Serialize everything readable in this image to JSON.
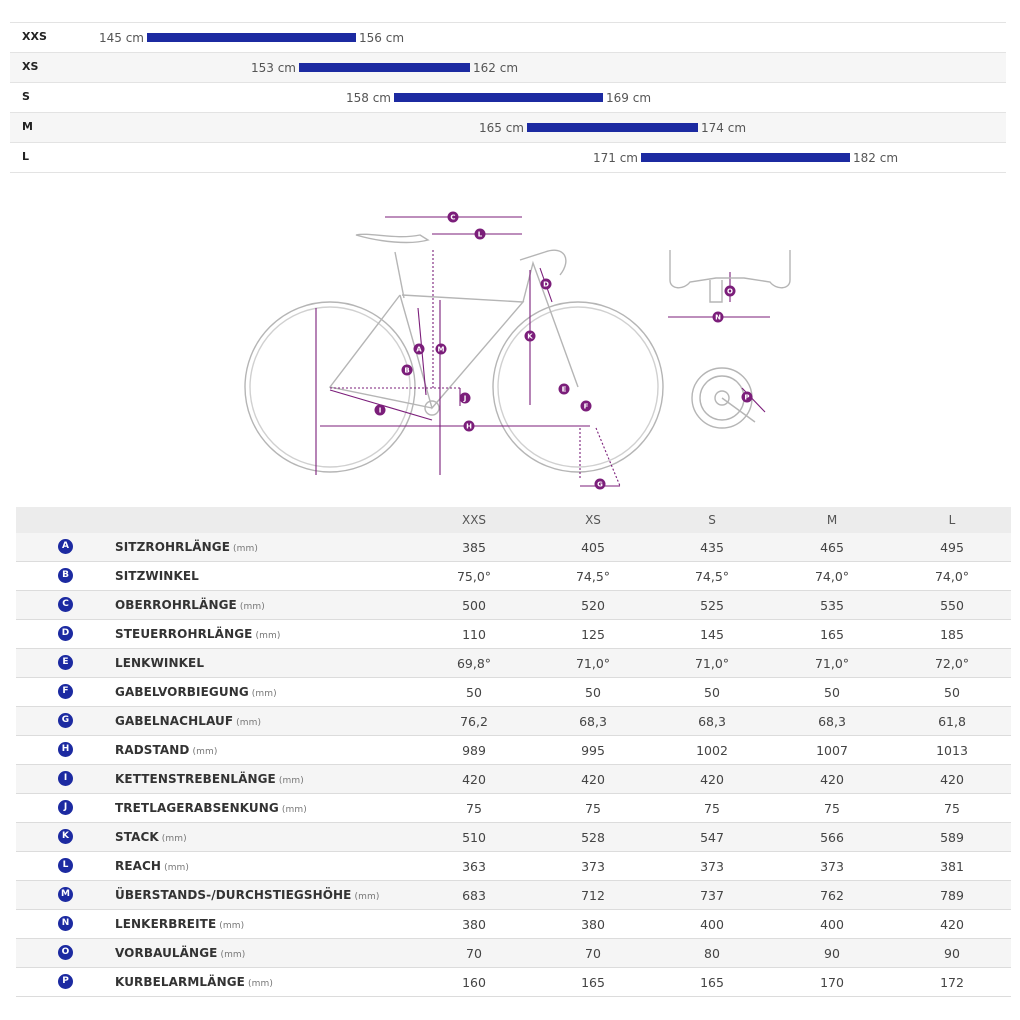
{
  "size_chart": [
    {
      "name": "XXS",
      "min": "145 cm",
      "max": "156 cm",
      "min_cm": 145,
      "max_cm": 156
    },
    {
      "name": "XS",
      "min": "153 cm",
      "max": "162 cm",
      "min_cm": 153,
      "max_cm": 162
    },
    {
      "name": "S",
      "min": "158 cm",
      "max": "169 cm",
      "min_cm": 158,
      "max_cm": 169
    },
    {
      "name": "M",
      "min": "165 cm",
      "max": "174 cm",
      "min_cm": 165,
      "max_cm": 174
    },
    {
      "name": "L",
      "min": "171 cm",
      "max": "182 cm",
      "min_cm": 171,
      "max_cm": 182
    }
  ],
  "diagram_labels": [
    "A",
    "B",
    "C",
    "D",
    "E",
    "F",
    "G",
    "H",
    "I",
    "J",
    "K",
    "L",
    "M",
    "N",
    "O",
    "P"
  ],
  "colors": {
    "badge": "#1c2aa1",
    "bar": "#1c2aa1",
    "dimension": "#7b1e7a",
    "bike_line": "#aaaaaa"
  },
  "geometry_table": {
    "sizes": [
      "XXS",
      "XS",
      "S",
      "M",
      "L"
    ],
    "rows": [
      {
        "letter": "A",
        "label": "SITZROHRLÄNGE",
        "unit": "(mm)",
        "values": [
          "385",
          "405",
          "435",
          "465",
          "495"
        ]
      },
      {
        "letter": "B",
        "label": "SITZWINKEL",
        "unit": "",
        "values": [
          "75,0°",
          "74,5°",
          "74,5°",
          "74,0°",
          "74,0°"
        ]
      },
      {
        "letter": "C",
        "label": "OBERROHRLÄNGE",
        "unit": "(mm)",
        "values": [
          "500",
          "520",
          "525",
          "535",
          "550"
        ]
      },
      {
        "letter": "D",
        "label": "STEUERROHRLÄNGE",
        "unit": "(mm)",
        "values": [
          "110",
          "125",
          "145",
          "165",
          "185"
        ]
      },
      {
        "letter": "E",
        "label": "LENKWINKEL",
        "unit": "",
        "values": [
          "69,8°",
          "71,0°",
          "71,0°",
          "71,0°",
          "72,0°"
        ]
      },
      {
        "letter": "F",
        "label": "GABELVORBIEGUNG",
        "unit": "(mm)",
        "values": [
          "50",
          "50",
          "50",
          "50",
          "50"
        ]
      },
      {
        "letter": "G",
        "label": "GABELNACHLAUF",
        "unit": "(mm)",
        "values": [
          "76,2",
          "68,3",
          "68,3",
          "68,3",
          "61,8"
        ]
      },
      {
        "letter": "H",
        "label": "RADSTAND",
        "unit": "(mm)",
        "values": [
          "989",
          "995",
          "1002",
          "1007",
          "1013"
        ]
      },
      {
        "letter": "I",
        "label": "KETTENSTREBENLÄNGE",
        "unit": "(mm)",
        "values": [
          "420",
          "420",
          "420",
          "420",
          "420"
        ]
      },
      {
        "letter": "J",
        "label": "TRETLAGERABSENKUNG",
        "unit": "(mm)",
        "values": [
          "75",
          "75",
          "75",
          "75",
          "75"
        ]
      },
      {
        "letter": "K",
        "label": "STACK",
        "unit": "(mm)",
        "values": [
          "510",
          "528",
          "547",
          "566",
          "589"
        ]
      },
      {
        "letter": "L",
        "label": "REACH",
        "unit": "(mm)",
        "values": [
          "363",
          "373",
          "373",
          "373",
          "381"
        ]
      },
      {
        "letter": "M",
        "label": "ÜBERSTANDS-/DURCHSTIEGSHÖHE",
        "unit": "(mm)",
        "values": [
          "683",
          "712",
          "737",
          "762",
          "789"
        ]
      },
      {
        "letter": "N",
        "label": "LENKERBREITE",
        "unit": "(mm)",
        "values": [
          "380",
          "380",
          "400",
          "400",
          "420"
        ]
      },
      {
        "letter": "O",
        "label": "VORBAULÄNGE",
        "unit": "(mm)",
        "values": [
          "70",
          "70",
          "80",
          "90",
          "90"
        ]
      },
      {
        "letter": "P",
        "label": "KURBELARMLÄNGE",
        "unit": "(mm)",
        "values": [
          "160",
          "165",
          "165",
          "170",
          "172"
        ]
      }
    ]
  }
}
